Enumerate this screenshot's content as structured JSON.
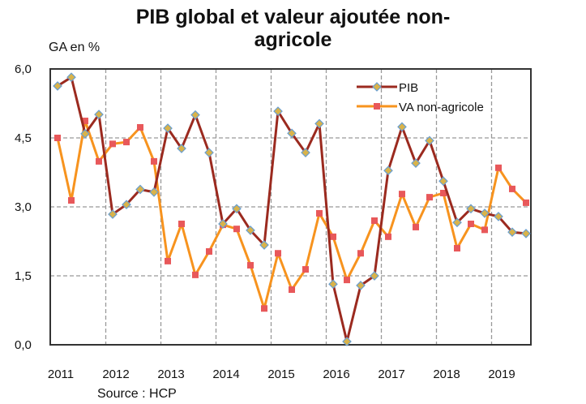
{
  "chart_data": {
    "type": "line",
    "title_line1": "PIB global et valeur ajoutée non-",
    "title_line2": "agricole",
    "ylabel": "GA en %",
    "source": "Source : HCP",
    "ylim": [
      0,
      6
    ],
    "yticks": [
      "0,0",
      "1,5",
      "3,0",
      "4,5",
      "6,0"
    ],
    "ytick_values": [
      0,
      1.5,
      3,
      4.5,
      6
    ],
    "x_tick_labels": [
      "2011",
      "2012",
      "2013",
      "2014",
      "2015",
      "2016",
      "2017",
      "2018",
      "2019"
    ],
    "x": [
      "2011T1",
      "2011T2",
      "2011T3",
      "2011T4",
      "2012T1",
      "2012T2",
      "2012T3",
      "2012T4",
      "2013T1",
      "2013T2",
      "2013T3",
      "2013T4",
      "2014T1",
      "2014T2",
      "2014T3",
      "2014T4",
      "2015T1",
      "2015T2",
      "2015T3",
      "2015T4",
      "2016T1",
      "2016T2",
      "2016T3",
      "2016T4",
      "2017T1",
      "2017T2",
      "2017T3",
      "2017T4",
      "2018T1",
      "2018T2",
      "2018T3",
      "2018T4",
      "2019T1",
      "2019T2",
      "2019T3"
    ],
    "grid": true,
    "legend_position": "top-right",
    "series": [
      {
        "name": "PIB",
        "color": "#9b2a1f",
        "marker": "diamond",
        "values": [
          5.63,
          5.82,
          4.59,
          5.01,
          2.84,
          3.05,
          3.38,
          3.32,
          4.71,
          4.27,
          5.0,
          4.18,
          2.63,
          2.96,
          2.49,
          2.17,
          5.08,
          4.6,
          4.18,
          4.81,
          1.32,
          0.07,
          1.29,
          1.5,
          3.79,
          4.74,
          3.95,
          4.44,
          3.56,
          2.66,
          2.96,
          2.86,
          2.79,
          2.45,
          2.42
        ]
      },
      {
        "name": "VA non-agricole",
        "color": "#f7931e",
        "marker": "square",
        "values": [
          4.5,
          3.14,
          4.87,
          3.99,
          4.37,
          4.41,
          4.73,
          3.99,
          1.82,
          2.63,
          1.52,
          2.03,
          2.61,
          2.52,
          1.73,
          0.79,
          1.99,
          1.2,
          1.64,
          2.86,
          2.35,
          1.41,
          1.99,
          2.7,
          2.35,
          3.28,
          2.56,
          3.21,
          3.3,
          2.1,
          2.63,
          2.5,
          3.85,
          3.39,
          3.09
        ]
      }
    ]
  }
}
